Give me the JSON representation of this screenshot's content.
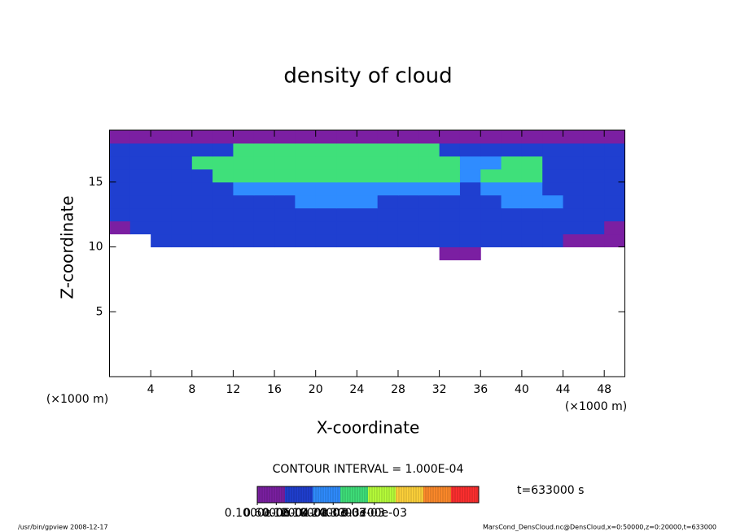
{
  "chart_data": {
    "type": "contour",
    "title": "density of cloud",
    "xlabel": "X-coordinate",
    "ylabel": "Z-coordinate",
    "x_unit": "(×1000 m)",
    "y_unit": "(×1000 m)",
    "xlim": [
      0,
      50
    ],
    "ylim": [
      0,
      19
    ],
    "xticks": [
      4,
      8,
      12,
      16,
      20,
      24,
      28,
      32,
      36,
      40,
      44,
      48
    ],
    "yticks": [
      5,
      10,
      15
    ],
    "contour_interval": {
      "value": 0.0001,
      "label": "CONTOUR INTERVAL = 1.000E-04"
    },
    "time_label": "t=633000 s",
    "colors": [
      "#7b1fa2",
      "#1f3fd0",
      "#2f8cff",
      "#3fe07a",
      "#b8ff3a",
      "#ffd23a",
      "#ff8a2a",
      "#ff2f2f"
    ],
    "colorbar_lim": [
      0,
      0.0007
    ],
    "colorbar_ticks": [
      {
        "value": 1e-07,
        "label": "0.1000e-06"
      },
      {
        "value": 6e-05,
        "label": "0.6000e-04"
      },
      {
        "value": 0.00012,
        "label": "0.1200e-03"
      },
      {
        "value": 0.00018,
        "label": "0.1800e-03"
      },
      {
        "value": 0.00024,
        "label": "0.2400e-03"
      },
      {
        "value": 0.0003,
        "label": "0.3000e-03"
      },
      {
        "value": 0.00037,
        "label": "0.3700e-03"
      }
    ],
    "field_xbins": [
      0,
      2,
      4,
      6,
      8,
      10,
      12,
      14,
      16,
      18,
      20,
      22,
      24,
      26,
      28,
      30,
      32,
      34,
      36,
      38,
      40,
      42,
      44,
      46,
      48,
      50
    ],
    "field_zbins": [
      9,
      10,
      11,
      12,
      13,
      14,
      15,
      16,
      17,
      18,
      19
    ],
    "field_values": [
      [
        0,
        0,
        0,
        0,
        0,
        0,
        0,
        0,
        0,
        0,
        0,
        0,
        0,
        0,
        0,
        0,
        5e-05,
        5e-05,
        0,
        0,
        0,
        0,
        0,
        0,
        0
      ],
      [
        0,
        0,
        0.0001,
        0.0001,
        0.0001,
        0.0001,
        0.0001,
        0.0001,
        0.0001,
        0.0001,
        0.0001,
        0.0001,
        0.0001,
        0.0001,
        0.0001,
        0.0001,
        0.0001,
        0.0001,
        0.0001,
        0.0001,
        0.0001,
        0.0001,
        5e-05,
        5e-05,
        5e-05
      ],
      [
        5e-05,
        0.0001,
        0.0001,
        0.0001,
        0.0001,
        0.0001,
        0.0001,
        0.0001,
        0.0001,
        0.0001,
        0.0001,
        0.0001,
        0.0001,
        0.0001,
        0.0001,
        0.0001,
        0.0001,
        0.0001,
        0.0001,
        0.0001,
        0.0001,
        0.0001,
        0.0001,
        0.0001,
        5e-05
      ],
      [
        0.00015,
        0.00015,
        0.00015,
        0.00015,
        0.00015,
        0.00015,
        0.00015,
        0.00015,
        0.00015,
        0.00015,
        0.00015,
        0.00015,
        0.00015,
        0.00015,
        0.00015,
        0.00015,
        0.00015,
        0.00015,
        0.00015,
        0.00015,
        0.00015,
        0.00015,
        0.00015,
        0.00015,
        0.00015
      ],
      [
        0.00015,
        0.00015,
        0.00015,
        0.00015,
        0.00015,
        0.00015,
        0.00015,
        0.00015,
        0.00015,
        0.00025,
        0.00025,
        0.00025,
        0.00025,
        0.00015,
        0.00015,
        0.00015,
        0.00015,
        0.00015,
        0.00015,
        0.00025,
        0.00025,
        0.00025,
        0.00015,
        0.00015,
        0.00015
      ],
      [
        0.00015,
        0.00015,
        0.00015,
        0.00015,
        0.00015,
        0.00015,
        0.00025,
        0.00025,
        0.00025,
        0.00025,
        0.00025,
        0.00025,
        0.00025,
        0.00025,
        0.00025,
        0.00025,
        0.00025,
        0.00015,
        0.00025,
        0.00025,
        0.00025,
        0.00015,
        0.00015,
        0.00015,
        0.00015
      ],
      [
        0.00015,
        0.00015,
        0.00015,
        0.00015,
        0.00015,
        0.00035,
        0.00035,
        0.00035,
        0.00035,
        0.00035,
        0.00035,
        0.00035,
        0.00035,
        0.00035,
        0.00035,
        0.00035,
        0.00035,
        0.0002,
        0.00035,
        0.00035,
        0.00035,
        0.00015,
        0.00015,
        0.00015,
        0.00015
      ],
      [
        0.00015,
        0.00015,
        0.00015,
        0.00015,
        0.00035,
        0.00035,
        0.00035,
        0.00035,
        0.00035,
        0.00035,
        0.00035,
        0.00035,
        0.00035,
        0.00035,
        0.00035,
        0.00035,
        0.00035,
        0.0002,
        0.0002,
        0.0003,
        0.0003,
        0.00015,
        0.00015,
        0.00015,
        0.00015
      ],
      [
        0.00015,
        0.00015,
        0.00015,
        0.00015,
        0.00015,
        0.00015,
        0.0003,
        0.0003,
        0.0003,
        0.0003,
        0.0003,
        0.0003,
        0.0003,
        0.0003,
        0.0003,
        0.0003,
        0.00015,
        0.00015,
        0.00015,
        0.00015,
        0.00015,
        0.00015,
        0.00015,
        0.00015,
        0.00015
      ],
      [
        6e-05,
        6e-05,
        6e-05,
        6e-05,
        6e-05,
        6e-05,
        6e-05,
        6e-05,
        6e-05,
        6e-05,
        6e-05,
        6e-05,
        6e-05,
        6e-05,
        6e-05,
        6e-05,
        6e-05,
        6e-05,
        6e-05,
        6e-05,
        6e-05,
        6e-05,
        6e-05,
        6e-05,
        6e-05
      ]
    ],
    "footer_left": "/usr/bin/gpview   2008-12-17",
    "footer_right": "MarsCond_DensCloud.nc@DensCloud,x=0:50000,z=0:20000,t=633000"
  }
}
